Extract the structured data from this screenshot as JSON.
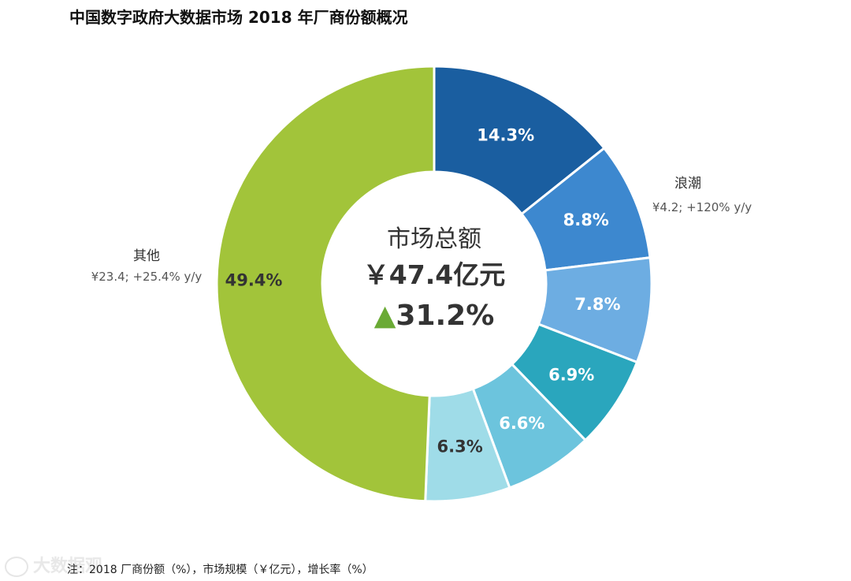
{
  "chart_data": {
    "type": "pie",
    "title": "中国数字政府大数据市场 2018 年厂商份额概况",
    "slices": [
      {
        "value": 14.3,
        "label": "14.3%",
        "color": "#1a5ea0",
        "text_color": "#ffffff"
      },
      {
        "value": 8.8,
        "label": "8.8%",
        "color": "#3d88cf",
        "text_color": "#ffffff",
        "name": "浪潮",
        "detail": "¥4.2; +120% y/y"
      },
      {
        "value": 7.8,
        "label": "7.8%",
        "color": "#6dade2",
        "text_color": "#ffffff"
      },
      {
        "value": 6.9,
        "label": "6.9%",
        "color": "#2aa6bd",
        "text_color": "#ffffff"
      },
      {
        "value": 6.6,
        "label": "6.6%",
        "color": "#6cc4dd",
        "text_color": "#ffffff"
      },
      {
        "value": 6.3,
        "label": "6.3%",
        "color": "#9fdce8",
        "text_color": "#333333"
      },
      {
        "value": 49.4,
        "label": "49.4%",
        "color": "#a2c43a",
        "text_color": "#333333",
        "name": "其他",
        "detail": "¥23.4; +25.4% y/y"
      }
    ],
    "center": {
      "title": "市场总额",
      "total": "￥47.4亿元",
      "growth_symbol": "▲",
      "growth": "31.2%",
      "growth_color": "#6aaa35"
    },
    "footnote": "注：2018 厂商份额（%），市场规模（￥亿元），增长率（%）"
  },
  "watermark": "大数据观"
}
